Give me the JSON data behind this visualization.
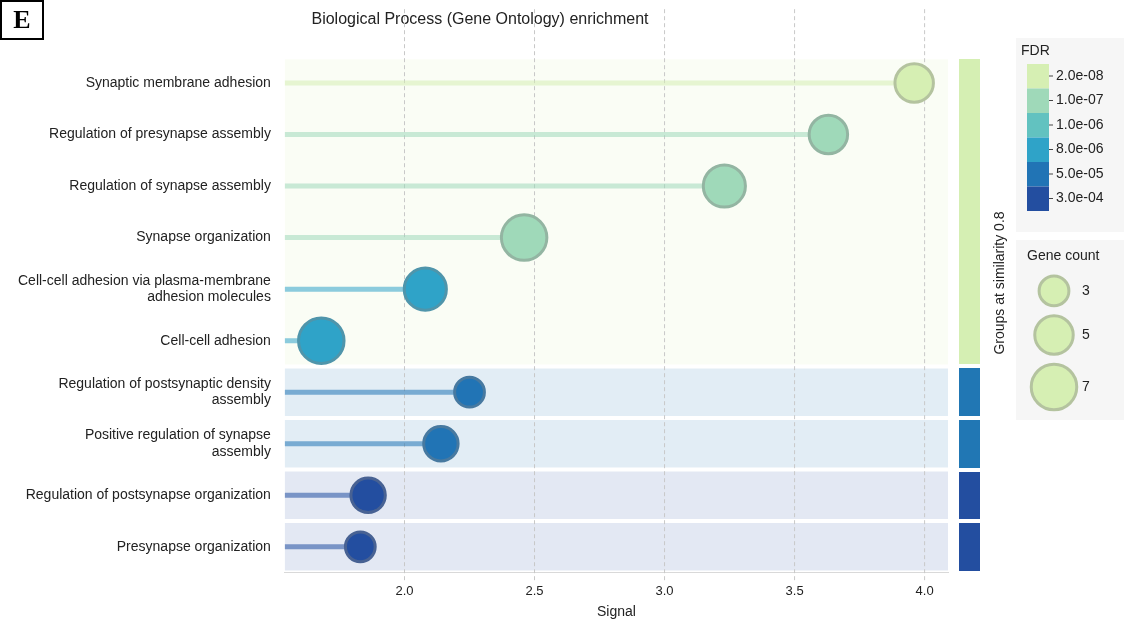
{
  "chart_data": {
    "type": "lollipop",
    "orientation": "horizontal",
    "title": "Biological Process (Gene Ontology) enrichment",
    "xlabel": "Signal",
    "y2label": "Groups at similarity 0.8",
    "legend_title": "FDR",
    "legend": "right",
    "grid": "x",
    "categories": [
      "Synaptic membrane adhesion",
      "Regulation of presynapse assembly",
      "Regulation of synapse assembly",
      "Synapse organization",
      "Cell-cell adhesion via plasma-membrane adhesion molecules",
      "Cell-cell adhesion",
      "Regulation of postsynaptic density assembly",
      "Positive regulation of synapse assembly",
      "Regulation of postsynapse organization",
      "Presynapse organization"
    ],
    "series": [
      {
        "name": "2.0e-08",
        "color": "#d6efb3",
        "values": [
          3.96,
          null,
          null,
          null,
          null,
          null,
          null,
          null,
          null,
          null
        ],
        "sizes": [
          5,
          null,
          null,
          null,
          null,
          null,
          null,
          null,
          null,
          null
        ]
      },
      {
        "name": "1.0e-07",
        "color": "#9fd9b9",
        "values": [
          null,
          3.63,
          3.23,
          2.46,
          null,
          null,
          null,
          null,
          null,
          null
        ],
        "sizes": [
          null,
          5,
          6,
          7,
          null,
          null,
          null,
          null,
          null,
          null
        ]
      },
      {
        "name": "1.0e-06",
        "color": "#62c2c0",
        "values": [
          null,
          null,
          null,
          null,
          null,
          null,
          null,
          null,
          null,
          null
        ],
        "sizes": [
          null,
          null,
          null,
          null,
          null,
          null,
          null,
          null,
          null,
          null
        ]
      },
      {
        "name": "8.0e-06",
        "color": "#2fa3c8",
        "values": [
          null,
          null,
          null,
          null,
          2.08,
          1.68,
          null,
          null,
          null,
          null
        ],
        "sizes": [
          null,
          null,
          null,
          null,
          6,
          7,
          null,
          null,
          null,
          null
        ]
      },
      {
        "name": "5.0e-05",
        "color": "#2174b5",
        "values": [
          null,
          null,
          null,
          null,
          null,
          null,
          2.25,
          2.14,
          null,
          null
        ],
        "sizes": [
          null,
          null,
          null,
          null,
          null,
          null,
          3,
          4,
          null,
          null
        ]
      },
      {
        "name": "3.0e-04",
        "color": "#234ea0",
        "values": [
          null,
          null,
          null,
          null,
          null,
          null,
          null,
          null,
          1.86,
          1.83
        ],
        "sizes": [
          null,
          null,
          null,
          null,
          null,
          null,
          null,
          null,
          4,
          3
        ]
      }
    ],
    "size_legend": [
      3,
      5,
      7
    ],
    "xlim": [
      1.54,
      4.09
    ],
    "xticks": [
      {
        "value": 2,
        "label": "2.0"
      },
      2.5,
      {
        "value": 3,
        "label": "3.0"
      },
      3.5,
      {
        "value": 4,
        "label": "4.0"
      }
    ],
    "bands": [
      {
        "axis": "y",
        "from": "Synaptic membrane adhesion",
        "to": "Cell-cell adhesion",
        "color": "#d5efb3"
      },
      {
        "axis": "y",
        "from": "Regulation of postsynaptic density assembly",
        "to": "Regulation of postsynaptic density assembly",
        "color": "#2177b4"
      },
      {
        "axis": "y",
        "from": "Positive regulation of synapse assembly",
        "to": "Positive regulation of synapse assembly",
        "color": "#2177b4"
      },
      {
        "axis": "y",
        "from": "Regulation of postsynapse organization",
        "to": "Regulation of postsynapse organization",
        "color": "#234ea0"
      },
      {
        "axis": "y",
        "from": "Presynapse organization",
        "to": "Presynapse organization",
        "color": "#234ea0"
      }
    ],
    "annotations": [
      "E",
      "Gene count"
    ]
  }
}
